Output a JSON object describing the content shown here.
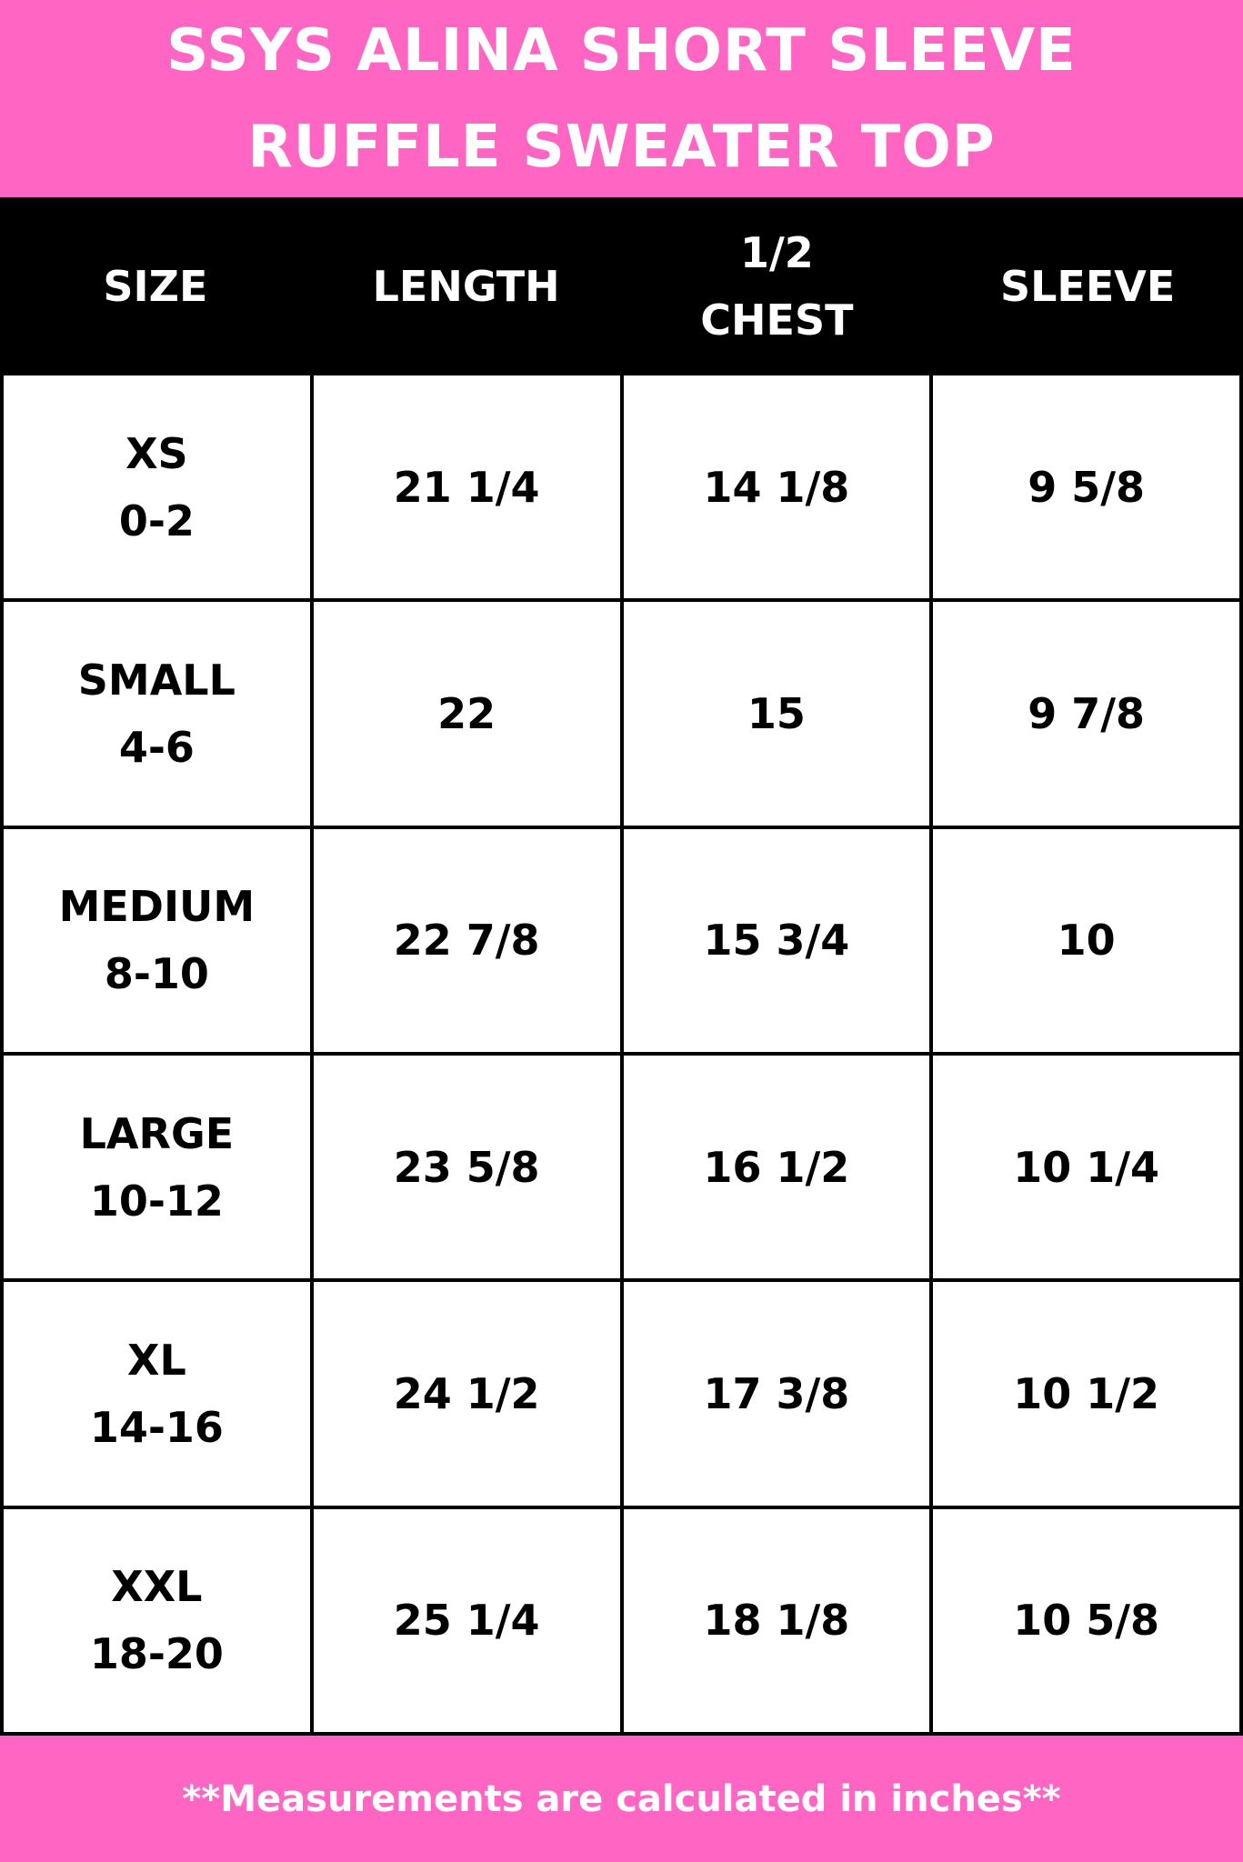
{
  "title": {
    "line1": "SSYS ALINA SHORT SLEEVE",
    "line2": "RUFFLE SWEATER TOP"
  },
  "colors": {
    "accent": "#ff66c4",
    "header_bg": "#000000"
  },
  "table": {
    "headers": [
      {
        "line1": "SIZE",
        "line2": ""
      },
      {
        "line1": "LENGTH",
        "line2": ""
      },
      {
        "line1": "1/2",
        "line2": "CHEST"
      },
      {
        "line1": "SLEEVE",
        "line2": ""
      }
    ],
    "rows": [
      {
        "size": "XS",
        "range": "0-2",
        "length": "21 1/4",
        "chest": "14 1/8",
        "sleeve": "9 5/8"
      },
      {
        "size": "SMALL",
        "range": "4-6",
        "length": "22",
        "chest": "15",
        "sleeve": "9 7/8"
      },
      {
        "size": "MEDIUM",
        "range": "8-10",
        "length": "22 7/8",
        "chest": "15 3/4",
        "sleeve": "10"
      },
      {
        "size": "LARGE",
        "range": "10-12",
        "length": "23 5/8",
        "chest": "16 1/2",
        "sleeve": "10 1/4"
      },
      {
        "size": "XL",
        "range": "14-16",
        "length": "24 1/2",
        "chest": "17 3/8",
        "sleeve": "10 1/2"
      },
      {
        "size": "XXL",
        "range": "18-20",
        "length": "25 1/4",
        "chest": "18 1/8",
        "sleeve": "10 5/8"
      }
    ]
  },
  "footer": {
    "note": "**Measurements are calculated in inches**"
  }
}
